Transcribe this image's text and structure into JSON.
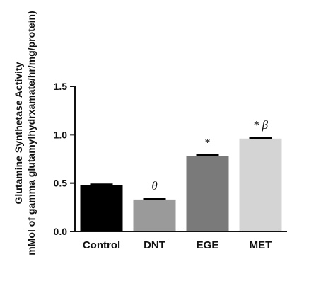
{
  "chart_data": {
    "type": "bar",
    "ylabel": "Glutamine Synthetase Activity",
    "ylabel_unit": "mMol of gamma glutamylhydrxamate/hr/mg/protein)",
    "ylim": [
      0,
      1.5
    ],
    "yticks": [
      "0.0",
      "0.5",
      "1.0",
      "1.5"
    ],
    "categories": [
      "Control",
      "DNT",
      "EGE",
      "MET"
    ],
    "values": [
      0.48,
      0.33,
      0.78,
      0.96
    ],
    "errors": [
      0.005,
      0.008,
      0.008,
      0.008
    ],
    "colors": [
      "#000000",
      "#9a9a9a",
      "#7a7a7a",
      "#d4d4d4"
    ],
    "annotations": [
      "",
      "θ",
      "*",
      "* β"
    ],
    "grid": false,
    "legend": "none"
  }
}
